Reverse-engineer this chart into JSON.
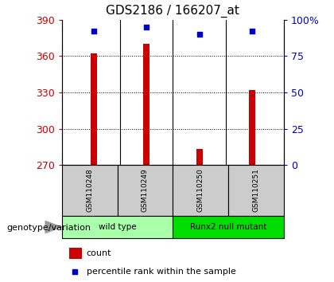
{
  "title": "GDS2186 / 166207_at",
  "samples": [
    "GSM110248",
    "GSM110249",
    "GSM110250",
    "GSM110251"
  ],
  "counts": [
    362,
    370,
    283,
    332
  ],
  "percentile_ranks": [
    92,
    95,
    90,
    92
  ],
  "ylim_left": [
    270,
    390
  ],
  "yticks_left": [
    270,
    300,
    330,
    360,
    390
  ],
  "ylim_right": [
    0,
    100
  ],
  "yticks_right": [
    0,
    25,
    50,
    75,
    100
  ],
  "bar_color": "#cc0000",
  "dot_color": "#0000cc",
  "bar_baseline": 270,
  "bar_width": 0.12,
  "groups": [
    {
      "label": "wild type",
      "samples": [
        0,
        1
      ],
      "color": "#aaffaa"
    },
    {
      "label": "Runx2 null mutant",
      "samples": [
        2,
        3
      ],
      "color": "#00dd00"
    }
  ],
  "group_label": "genotype/variation",
  "legend_count_label": "count",
  "legend_pct_label": "percentile rank within the sample",
  "tick_label_color_left": "#cc0000",
  "tick_label_color_right": "#0000cc",
  "grid_color": "black",
  "sample_box_color": "#cccccc",
  "title_fontsize": 11,
  "axis_fontsize": 9,
  "legend_fontsize": 8,
  "group_label_fontsize": 8
}
